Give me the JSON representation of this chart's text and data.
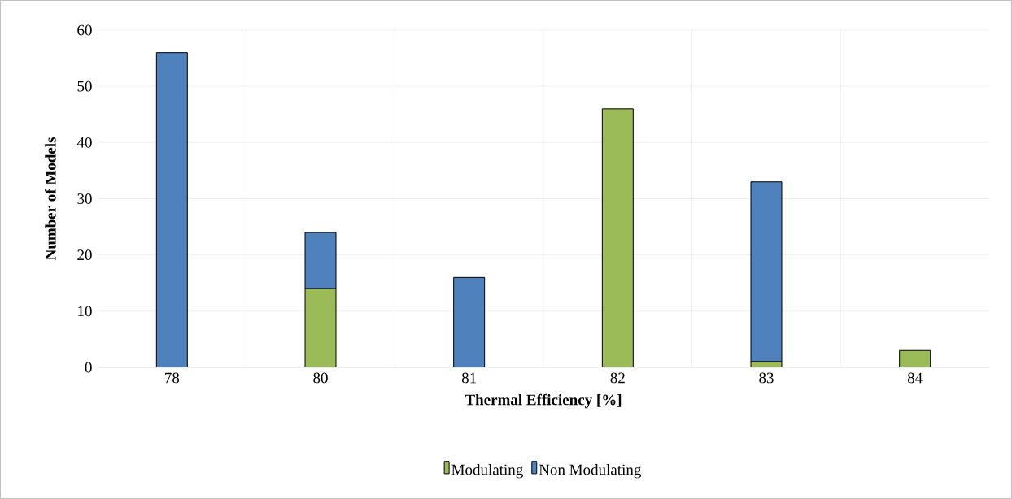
{
  "chart_data": {
    "type": "bar",
    "stacked": true,
    "xlabel": "Thermal Efficiency [%]",
    "ylabel": "Number of Models",
    "categories": [
      "78",
      "80",
      "81",
      "82",
      "83",
      "84"
    ],
    "series": [
      {
        "name": "Modulating",
        "color": "#9bbb59",
        "values": [
          null,
          14,
          null,
          46,
          1,
          3
        ]
      },
      {
        "name": "Non Modulating",
        "color": "#4f81bd",
        "values": [
          56,
          10,
          16,
          null,
          32,
          null
        ]
      }
    ],
    "ylim": [
      0,
      60
    ],
    "yticks": [
      0,
      10,
      20,
      30,
      40,
      50,
      60
    ],
    "grid": true,
    "legend": "bottom"
  }
}
